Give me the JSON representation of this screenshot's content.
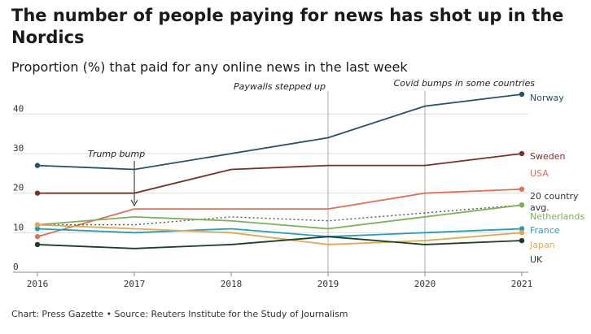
{
  "title": "The number of people paying for news has shot up in the Nordics",
  "subtitle": "Proportion (%) that paid for any online news in the last week",
  "footer": "Chart: Press Gazette • Source: Reuters Institute for the Study of Journalism",
  "chart_data": {
    "type": "line",
    "x": [
      2016,
      2017,
      2018,
      2019,
      2020,
      2021
    ],
    "ylim": [
      0,
      45
    ],
    "yticks": [
      0,
      10,
      20,
      30,
      40
    ],
    "grid": true,
    "series": [
      {
        "name": "Norway",
        "color": "#24526a",
        "values": [
          27,
          26,
          30,
          34,
          42,
          45
        ]
      },
      {
        "name": "Sweden",
        "color": "#7a2f2a",
        "values": [
          20,
          20,
          26,
          27,
          27,
          30
        ]
      },
      {
        "name": "USA",
        "color": "#e07058",
        "values": [
          9,
          16,
          16,
          16,
          20,
          21
        ]
      },
      {
        "name": "20 country avg.",
        "color": "#555555",
        "dashed": true,
        "values": [
          12,
          12,
          14,
          13,
          15,
          17
        ]
      },
      {
        "name": "Netherlands",
        "color": "#7fae5a",
        "values": [
          12,
          14,
          13,
          11,
          14,
          17
        ]
      },
      {
        "name": "France",
        "color": "#2a9db5",
        "values": [
          11,
          10,
          11,
          9,
          10,
          11
        ]
      },
      {
        "name": "Japan",
        "color": "#e0a854",
        "values": [
          12,
          11,
          10,
          7,
          8,
          10
        ]
      },
      {
        "name": "UK",
        "color": "#1f3b2c",
        "values": [
          7,
          6,
          7,
          9,
          7,
          8
        ]
      }
    ],
    "annotations": [
      {
        "text": "Trump bump",
        "x": 2017
      },
      {
        "text": "Paywalls stepped up",
        "x": 2019
      },
      {
        "text": "Covid bumps in some countries",
        "x": 2020
      }
    ]
  }
}
